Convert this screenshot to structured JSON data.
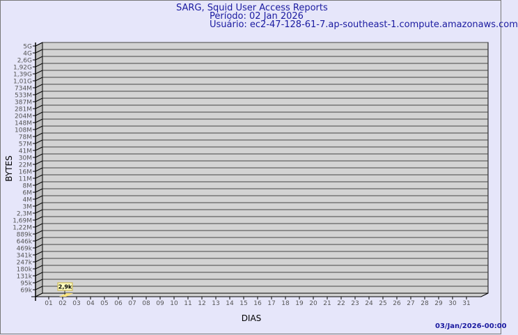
{
  "header": {
    "title": "SARG, Squid User Access Reports",
    "period": "Período: 02 Jan 2026",
    "user": "Usuário: ec2-47-128-61-7.ap-southeast-1.compute.amazonaws.com"
  },
  "footer": {
    "timestamp": "03/Jan/2026-00:00"
  },
  "colors": {
    "background": "#e6e6fa",
    "plot": "#d3d3d3",
    "bar": "#ffe680",
    "text": "#1a1aa0"
  },
  "chart_data": {
    "type": "bar",
    "xlabel": "DIAS",
    "ylabel": "BYTES",
    "y_scale": "log",
    "grid": true,
    "categories": [
      "01",
      "02",
      "03",
      "04",
      "05",
      "06",
      "07",
      "08",
      "09",
      "10",
      "11",
      "12",
      "13",
      "14",
      "15",
      "16",
      "17",
      "18",
      "19",
      "20",
      "21",
      "22",
      "23",
      "24",
      "25",
      "26",
      "27",
      "28",
      "29",
      "30",
      "31"
    ],
    "y_ticks": [
      "69k",
      "95k",
      "131k",
      "180k",
      "247k",
      "341k",
      "469k",
      "646k",
      "889k",
      "1,22M",
      "1,69M",
      "2,3M",
      "3M",
      "4M",
      "6M",
      "8M",
      "11M",
      "16M",
      "22M",
      "30M",
      "41M",
      "57M",
      "78M",
      "108M",
      "148M",
      "204M",
      "281M",
      "387M",
      "533M",
      "734M",
      "1,01G",
      "1,39G",
      "1,92G",
      "2,6G",
      "4G",
      "5G"
    ],
    "series": [
      {
        "values": [
          null,
          2900,
          null,
          null,
          null,
          null,
          null,
          null,
          null,
          null,
          null,
          null,
          null,
          null,
          null,
          null,
          null,
          null,
          null,
          null,
          null,
          null,
          null,
          null,
          null,
          null,
          null,
          null,
          null,
          null,
          null
        ]
      }
    ],
    "data_labels": [
      {
        "category": "02",
        "text": "2,9k"
      }
    ]
  }
}
